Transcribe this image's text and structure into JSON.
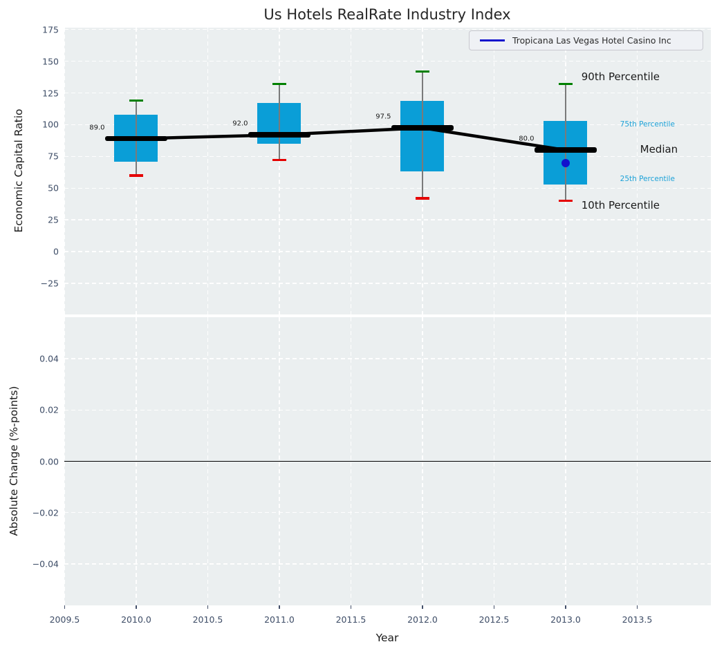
{
  "figure": {
    "title": "Us Hotels RealRate Industry Index",
    "background": "#ffffff",
    "panel_background": "#ebeff0"
  },
  "xlim": [
    2009.4976,
    2014.0145
  ],
  "chart_data": [
    {
      "type": "boxplot",
      "panel": "top",
      "title": "Us Hotels RealRate Industry Index",
      "ylabel": "Economic Capital Ratio",
      "legend": [
        {
          "label": "Tropicana Las Vegas Hotel Casino Inc",
          "color": "#1212cd"
        }
      ],
      "legend_position": "upper right",
      "grid": "white dashed on light gray, on",
      "ylim": [
        -49.5,
        176.5
      ],
      "yticks": [
        {
          "v": 175,
          "label": "175"
        },
        {
          "v": 150,
          "label": "150"
        },
        {
          "v": 125,
          "label": "125"
        },
        {
          "v": 100,
          "label": "100"
        },
        {
          "v": 75,
          "label": "75"
        },
        {
          "v": 50,
          "label": "50"
        },
        {
          "v": 25,
          "label": "25"
        },
        {
          "v": 0,
          "label": "0"
        },
        {
          "v": -25,
          "label": "−25"
        }
      ],
      "boxes": [
        {
          "year": 2010,
          "whisker_low": 60,
          "q1": 71,
          "median": 89,
          "q3": 108,
          "whisker_high": 119,
          "median_label": "89.0"
        },
        {
          "year": 2011,
          "whisker_low": 72,
          "q1": 85,
          "median": 92,
          "q3": 117,
          "whisker_high": 132,
          "median_label": "92.0"
        },
        {
          "year": 2012,
          "whisker_low": 42,
          "q1": 63,
          "median": 97.5,
          "q3": 119,
          "whisker_high": 142,
          "median_label": "97.5"
        },
        {
          "year": 2013,
          "whisker_low": 40,
          "q1": 53,
          "median": 80,
          "q3": 103,
          "whisker_high": 132,
          "median_label": "80.0"
        }
      ],
      "median_line": {
        "x": [
          2010,
          2011,
          2012,
          2013
        ],
        "y": [
          89,
          92,
          97.5,
          80
        ],
        "color": "#000000"
      },
      "company_point": {
        "series": "Tropicana Las Vegas Hotel Casino Inc",
        "x": 2013,
        "y": 70,
        "color": "#1212cd"
      },
      "annotations": [
        {
          "text": "90th Percentile",
          "x": 2013.11,
          "y": 138,
          "style": "big"
        },
        {
          "text": "75th Percentile",
          "x": 2013.38,
          "y": 100.5,
          "style": "small_cyan"
        },
        {
          "text": "Median",
          "x": 2013.52,
          "y": 80.5,
          "style": "big"
        },
        {
          "text": "25th Percentile",
          "x": 2013.38,
          "y": 57.5,
          "style": "small_cyan"
        },
        {
          "text": "10th Percentile",
          "x": 2013.11,
          "y": 36.5,
          "style": "big"
        }
      ],
      "colors": {
        "box_fill": "#0a9ed7",
        "whisker": "#7a7a7a",
        "cap_high": "#008000",
        "cap_low": "#e50000",
        "median": "#000000",
        "annotation_big": "#1a1a1a",
        "annotation_cyan": "#1da2d8",
        "tick_label": "#3d4c66"
      }
    },
    {
      "type": "line",
      "panel": "bottom",
      "ylabel": "Absolute Change (%-points)",
      "xlabel": "Year",
      "ylim": [
        -0.0562,
        0.0562
      ],
      "yticks": [
        {
          "v": 0.04,
          "label": "0.04"
        },
        {
          "v": 0.02,
          "label": "0.02"
        },
        {
          "v": 0,
          "label": "0.00"
        },
        {
          "v": -0.02,
          "label": "−0.02"
        },
        {
          "v": -0.04,
          "label": "−0.04"
        }
      ],
      "xticks": [
        {
          "v": 2009.5,
          "label": "2009.5"
        },
        {
          "v": 2010,
          "label": "2010.0"
        },
        {
          "v": 2010.5,
          "label": "2010.5"
        },
        {
          "v": 2011,
          "label": "2011.0"
        },
        {
          "v": 2011.5,
          "label": "2011.5"
        },
        {
          "v": 2012,
          "label": "2012.0"
        },
        {
          "v": 2012.5,
          "label": "2012.5"
        },
        {
          "v": 2013,
          "label": "2013.0"
        },
        {
          "v": 2013.5,
          "label": "2013.5"
        }
      ],
      "zero_line": 0.0,
      "series": []
    }
  ]
}
